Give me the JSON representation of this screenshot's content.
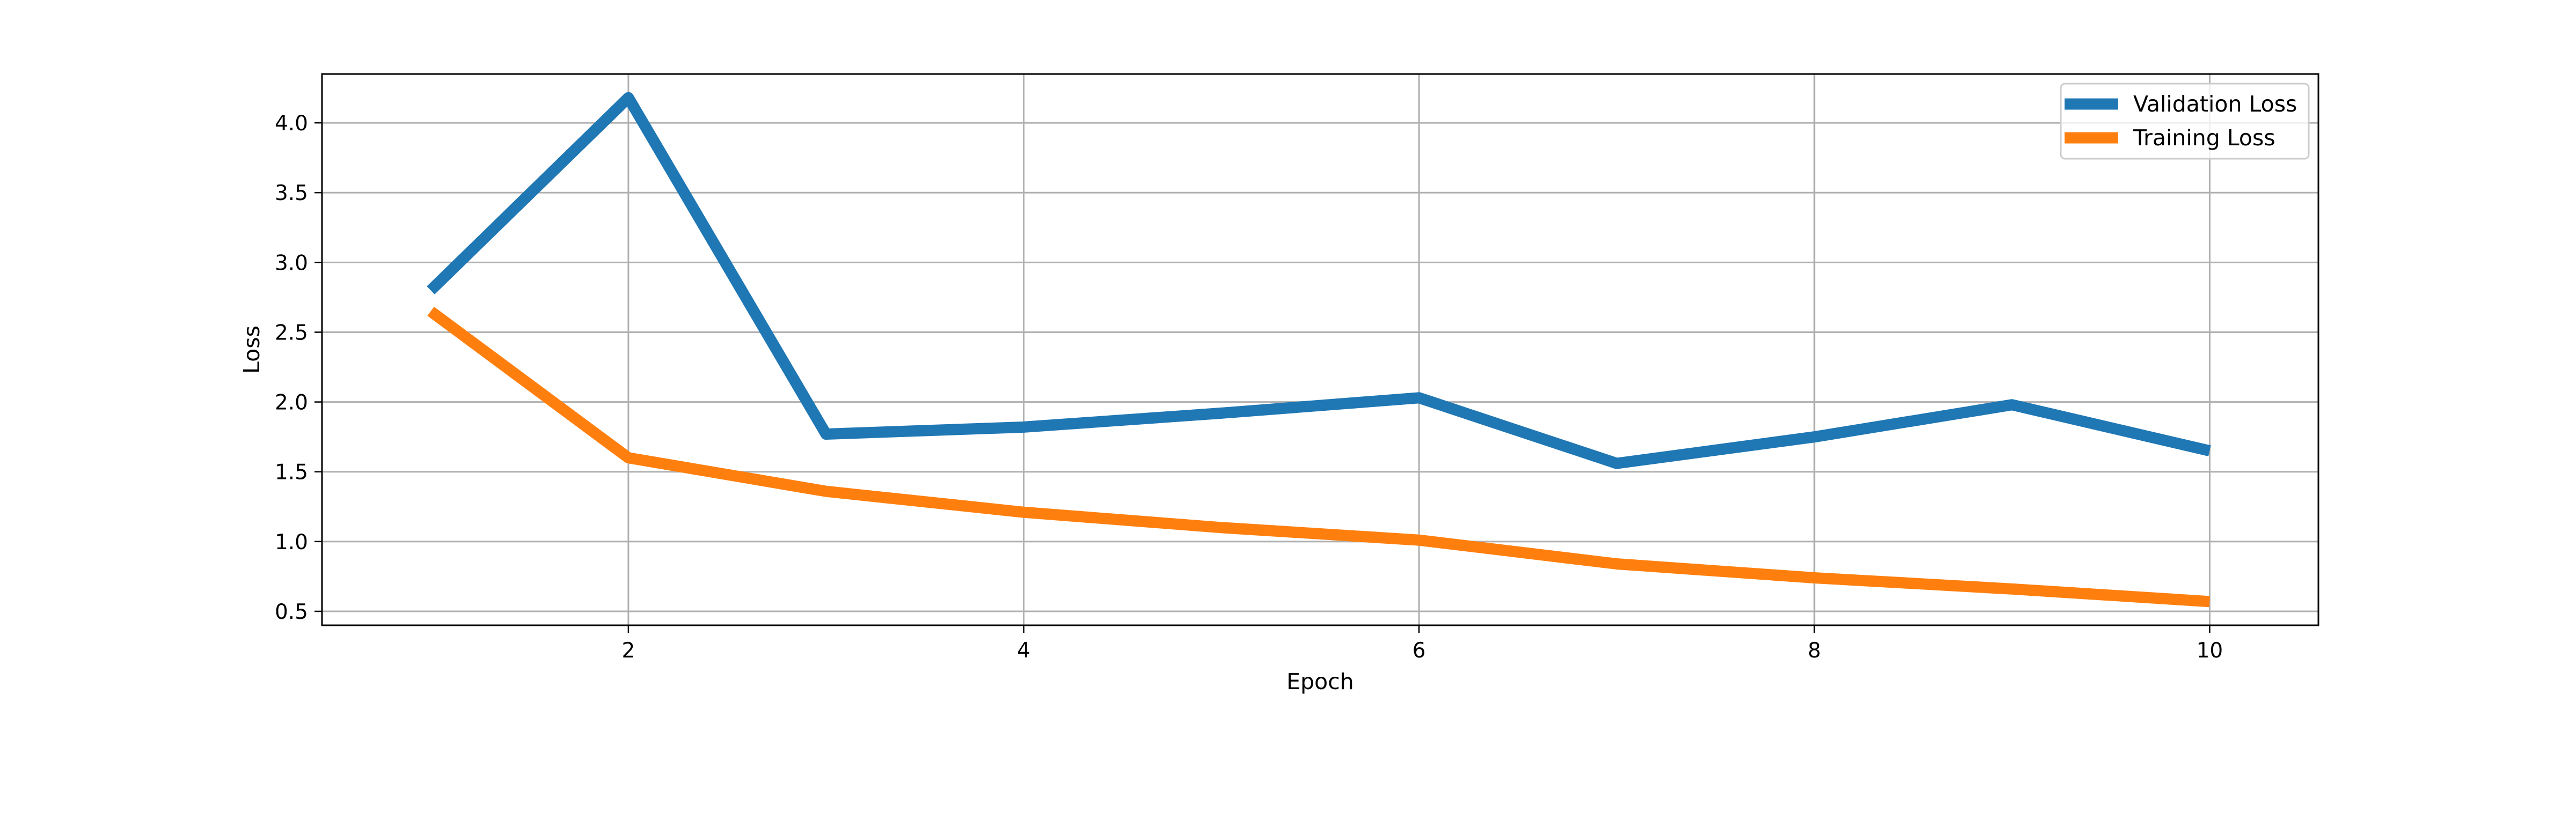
{
  "chart_data": {
    "type": "line",
    "xlabel": "Epoch",
    "ylabel": "Loss",
    "x": [
      1,
      2,
      3,
      4,
      5,
      6,
      7,
      8,
      9,
      10
    ],
    "xlim": [
      0.45,
      10.55
    ],
    "ylim": [
      0.4,
      4.35
    ],
    "xticks": [
      2,
      4,
      6,
      8,
      10
    ],
    "yticks": [
      0.5,
      1.0,
      1.5,
      2.0,
      2.5,
      3.0,
      3.5,
      4.0
    ],
    "xtick_labels": [
      "2",
      "4",
      "6",
      "8",
      "10"
    ],
    "ytick_labels": [
      "0.5",
      "1.0",
      "1.5",
      "2.0",
      "2.5",
      "3.0",
      "3.5",
      "4.0"
    ],
    "grid": true,
    "legend_position": "top-right",
    "series": [
      {
        "name": "Validation Loss",
        "color": "#1f77b4",
        "values": [
          2.8,
          4.18,
          1.77,
          1.82,
          1.92,
          2.03,
          1.56,
          1.75,
          1.98,
          1.65
        ]
      },
      {
        "name": "Training Loss",
        "color": "#ff7f0e",
        "values": [
          2.65,
          1.6,
          1.36,
          1.21,
          1.1,
          1.01,
          0.84,
          0.74,
          0.66,
          0.57
        ]
      }
    ]
  }
}
